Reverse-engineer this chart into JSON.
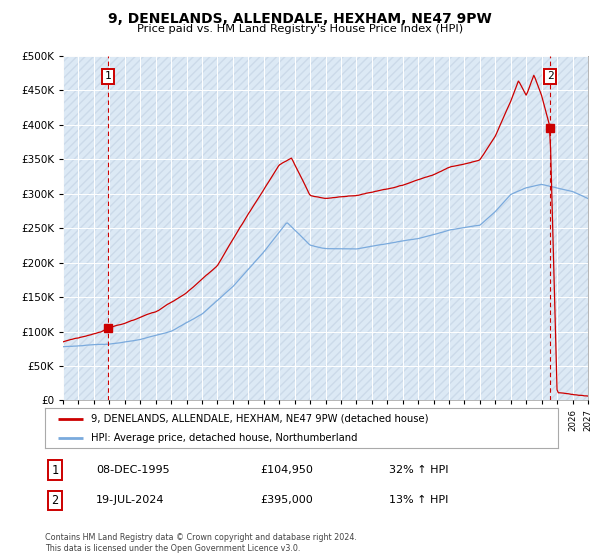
{
  "title": "9, DENELANDS, ALLENDALE, HEXHAM, NE47 9PW",
  "subtitle": "Price paid vs. HM Land Registry's House Price Index (HPI)",
  "legend_line1": "9, DENELANDS, ALLENDALE, HEXHAM, NE47 9PW (detached house)",
  "legend_line2": "HPI: Average price, detached house, Northumberland",
  "sale1_date": "08-DEC-1995",
  "sale1_price": "£104,950",
  "sale1_hpi": "32% ↑ HPI",
  "sale2_date": "19-JUL-2024",
  "sale2_price": "£395,000",
  "sale2_hpi": "13% ↑ HPI",
  "footer": "Contains HM Land Registry data © Crown copyright and database right 2024.\nThis data is licensed under the Open Government Licence v3.0.",
  "hpi_color": "#7aaadd",
  "property_color": "#cc0000",
  "bg_color": "#dce9f5",
  "grid_color": "#ffffff",
  "ylim": [
    0,
    500000
  ],
  "ytick_step": 50000,
  "sale1_x": 1995.92,
  "sale1_y": 104950,
  "sale2_x": 2024.54,
  "sale2_y": 395000,
  "xmin": 1993.0,
  "xmax": 2027.0
}
